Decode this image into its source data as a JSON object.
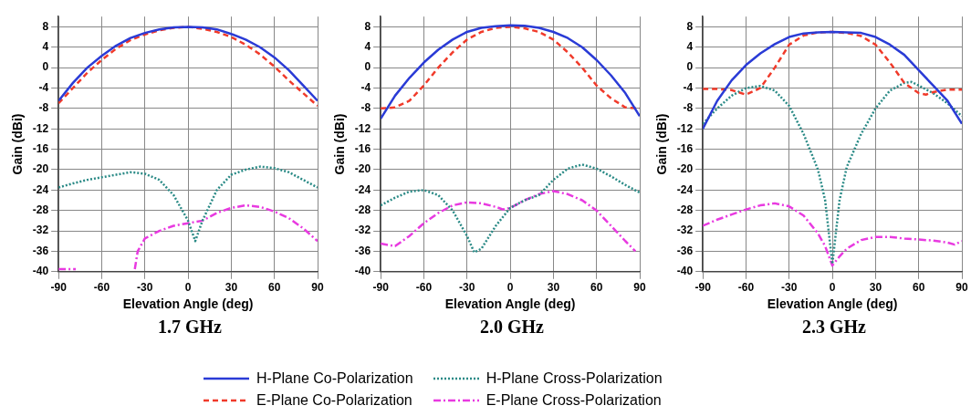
{
  "chart_data": [
    {
      "type": "line",
      "title": "1.7 GHz",
      "xlabel": "Elevation Angle (deg)",
      "ylabel": "Gain (dBi)",
      "xlim": [
        -90,
        90
      ],
      "xticks": [
        -90,
        -60,
        -30,
        0,
        30,
        60,
        90
      ],
      "ylim": [
        -40,
        10
      ],
      "yticks": [
        -40,
        -36,
        -32,
        -28,
        -24,
        -20,
        -16,
        -12,
        -8,
        -4,
        0,
        4,
        8
      ],
      "grid": true,
      "marker": "none",
      "legend": false,
      "series": [
        {
          "color": "#2a3bd6",
          "line_style": "solid",
          "x": [
            -90,
            -80,
            -70,
            -60,
            -50,
            -40,
            -30,
            -20,
            -10,
            0,
            10,
            20,
            30,
            40,
            50,
            60,
            70,
            80,
            90
          ],
          "values": [
            -6.5,
            -3,
            0,
            2.3,
            4.3,
            5.8,
            6.8,
            7.5,
            7.9,
            8,
            7.9,
            7.5,
            6.6,
            5.5,
            4,
            2,
            -0.5,
            -3.5,
            -6.5
          ]
        },
        {
          "color": "#f03a2a",
          "line_style": "dashed",
          "x": [
            -90,
            -80,
            -70,
            -60,
            -50,
            -40,
            -30,
            -20,
            -10,
            0,
            10,
            20,
            30,
            40,
            50,
            60,
            70,
            80,
            90
          ],
          "values": [
            -7,
            -4,
            -1,
            1.5,
            3.7,
            5.4,
            6.5,
            7.3,
            7.8,
            8,
            7.6,
            7,
            6,
            4.5,
            2.6,
            0.2,
            -2.5,
            -5,
            -7.5
          ]
        },
        {
          "color": "#2a8a86",
          "line_style": "dotted",
          "x": [
            -90,
            -80,
            -70,
            -60,
            -50,
            -40,
            -30,
            -20,
            -10,
            0,
            5,
            10,
            20,
            30,
            40,
            50,
            60,
            70,
            80,
            90
          ],
          "values": [
            -23.5,
            -22.7,
            -22,
            -21.5,
            -21,
            -20.5,
            -20.8,
            -22,
            -25,
            -30,
            -34,
            -30,
            -24,
            -21,
            -20,
            -19.4,
            -19.7,
            -20.5,
            -22,
            -23.5
          ]
        },
        {
          "color": "#e83ae0",
          "line_style": "dashdot",
          "x": [
            -90,
            -78,
            -77,
            -37,
            -35,
            -30,
            -20,
            -10,
            0,
            10,
            20,
            30,
            40,
            50,
            60,
            70,
            80,
            90
          ],
          "values": [
            -39.5,
            -39.5,
            null,
            -39.5,
            -36,
            -33.5,
            -32,
            -31,
            -30.5,
            -30,
            -28.5,
            -27.5,
            -27,
            -27.3,
            -28.2,
            -29.5,
            -31.5,
            -34
          ]
        }
      ]
    },
    {
      "type": "line",
      "title": "2.0 GHz",
      "xlabel": "Elevation Angle (deg)",
      "ylabel": "Gain (dBi)",
      "xlim": [
        -90,
        90
      ],
      "xticks": [
        -90,
        -60,
        -30,
        0,
        30,
        60,
        90
      ],
      "ylim": [
        -40,
        10
      ],
      "yticks": [
        -40,
        -36,
        -32,
        -28,
        -24,
        -20,
        -16,
        -12,
        -8,
        -4,
        0,
        4,
        8
      ],
      "grid": true,
      "marker": "none",
      "legend": "bottom",
      "series": [
        {
          "name": "H-Plane Co-Polarization",
          "color": "#2a3bd6",
          "line_style": "solid",
          "x": [
            -90,
            -80,
            -70,
            -60,
            -50,
            -40,
            -30,
            -20,
            -10,
            0,
            10,
            20,
            30,
            40,
            50,
            60,
            70,
            80,
            90
          ],
          "values": [
            -10,
            -5.5,
            -2,
            1,
            3.5,
            5.5,
            7,
            7.8,
            8.1,
            8.3,
            8.2,
            7.8,
            7,
            5.8,
            4,
            1.5,
            -1.5,
            -5,
            -9.5
          ]
        },
        {
          "name": "E-Plane Co-Polarization",
          "color": "#f03a2a",
          "line_style": "dashed",
          "x": [
            -90,
            -80,
            -70,
            -60,
            -50,
            -40,
            -30,
            -20,
            -10,
            0,
            10,
            20,
            30,
            40,
            50,
            60,
            70,
            80,
            90
          ],
          "values": [
            -8,
            -7.8,
            -6.5,
            -3.5,
            0,
            3,
            5.5,
            7,
            7.8,
            8,
            7.7,
            7,
            5.5,
            3,
            0,
            -3.5,
            -6,
            -7.8,
            -8
          ]
        },
        {
          "name": "H-Plane Cross-Polarization",
          "color": "#2a8a86",
          "line_style": "dotted",
          "x": [
            -90,
            -80,
            -70,
            -60,
            -50,
            -40,
            -30,
            -25,
            -20,
            -10,
            0,
            10,
            20,
            30,
            40,
            50,
            60,
            70,
            80,
            90
          ],
          "values": [
            -27,
            -25.5,
            -24.3,
            -24,
            -25,
            -28,
            -33,
            -36.2,
            -35.5,
            -31,
            -27.5,
            -26,
            -25,
            -22,
            -19.8,
            -19,
            -19.8,
            -21.3,
            -23,
            -24.5
          ]
        },
        {
          "name": "E-Plane Cross-Polarization",
          "color": "#e83ae0",
          "line_style": "dashdot",
          "x": [
            -90,
            -80,
            -70,
            -60,
            -50,
            -40,
            -30,
            -20,
            -10,
            -5,
            0,
            10,
            20,
            30,
            40,
            50,
            60,
            70,
            80,
            87
          ],
          "values": [
            -34.5,
            -35,
            -33,
            -30.5,
            -28.5,
            -27,
            -26.4,
            -26.6,
            -27.3,
            -27.8,
            -27.5,
            -26,
            -24.8,
            -24.2,
            -24.8,
            -26,
            -28,
            -31,
            -34,
            -36
          ]
        }
      ]
    },
    {
      "type": "line",
      "title": "2.3 GHz",
      "xlabel": "Elevation Angle (deg)",
      "ylabel": "Gain (dBi)",
      "xlim": [
        -90,
        90
      ],
      "xticks": [
        -90,
        -60,
        -30,
        0,
        30,
        60,
        90
      ],
      "ylim": [
        -40,
        10
      ],
      "yticks": [
        -40,
        -36,
        -32,
        -28,
        -24,
        -20,
        -16,
        -12,
        -8,
        -4,
        0,
        4,
        8
      ],
      "grid": true,
      "marker": "none",
      "legend": false,
      "series": [
        {
          "color": "#2a3bd6",
          "line_style": "solid",
          "x": [
            -90,
            -80,
            -70,
            -60,
            -50,
            -40,
            -30,
            -20,
            -10,
            0,
            10,
            20,
            30,
            40,
            50,
            60,
            70,
            80,
            90
          ],
          "values": [
            -12,
            -6.5,
            -2.5,
            0.5,
            2.8,
            4.6,
            6,
            6.7,
            6.9,
            7,
            6.9,
            6.8,
            6,
            4.5,
            2.5,
            -0.5,
            -3.5,
            -6.5,
            -11
          ]
        },
        {
          "color": "#f03a2a",
          "line_style": "dashed",
          "x": [
            -90,
            -80,
            -70,
            -60,
            -50,
            -40,
            -30,
            -20,
            -10,
            0,
            10,
            20,
            30,
            40,
            50,
            60,
            65,
            70,
            80,
            90
          ],
          "values": [
            -4.2,
            -4.2,
            -4.4,
            -5.3,
            -4,
            0,
            4.5,
            6.3,
            6.9,
            7,
            6.8,
            6.2,
            4.5,
            1,
            -3,
            -5,
            -5.3,
            -4.8,
            -4.3,
            -4.3
          ]
        },
        {
          "color": "#2a8a86",
          "line_style": "dotted",
          "x": [
            -90,
            -80,
            -70,
            -60,
            -50,
            -40,
            -30,
            -20,
            -10,
            -5,
            0,
            5,
            10,
            20,
            30,
            40,
            50,
            55,
            60,
            70,
            80,
            90
          ],
          "values": [
            -11,
            -8,
            -5.5,
            -4,
            -3.6,
            -4.5,
            -7.5,
            -13,
            -20,
            -26,
            -38.5,
            -26,
            -19.5,
            -13,
            -8,
            -4.5,
            -3,
            -2.8,
            -3.5,
            -5,
            -7,
            -9.5
          ]
        },
        {
          "color": "#e83ae0",
          "line_style": "dashdot",
          "x": [
            -90,
            -80,
            -70,
            -60,
            -50,
            -40,
            -30,
            -20,
            -10,
            -5,
            0,
            5,
            10,
            20,
            30,
            40,
            50,
            60,
            70,
            80,
            85,
            90
          ],
          "values": [
            -31,
            -29.8,
            -28.8,
            -27.8,
            -27,
            -26.6,
            -27.2,
            -29,
            -32.5,
            -35,
            -38.8,
            -37,
            -35.5,
            -33.8,
            -33.2,
            -33.2,
            -33.5,
            -33.7,
            -33.9,
            -34.3,
            -34.7,
            -34
          ]
        }
      ]
    }
  ]
}
